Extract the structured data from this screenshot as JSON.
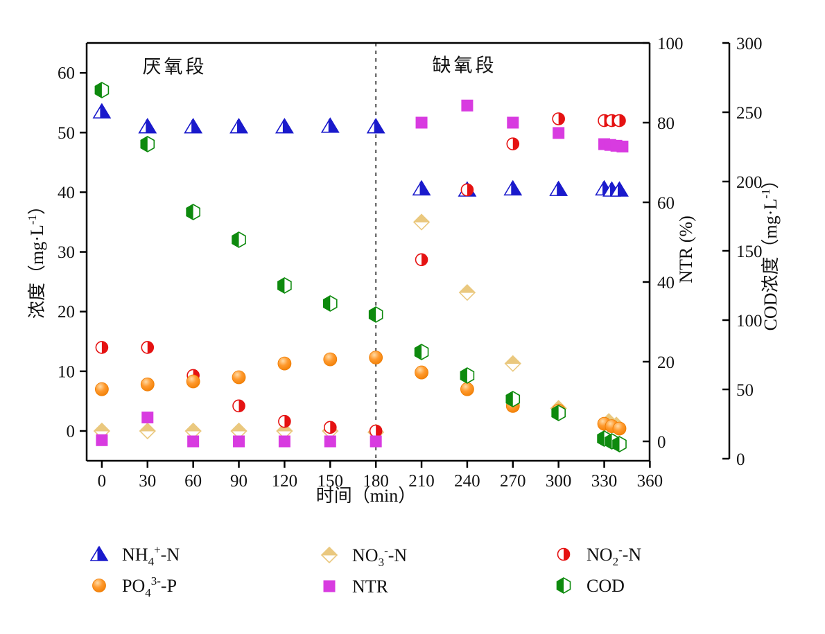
{
  "chart_data": {
    "type": "scatter",
    "title": "",
    "x_axis": {
      "label": "时间（min）",
      "ticks": [
        0,
        30,
        60,
        90,
        120,
        150,
        180,
        210,
        240,
        270,
        300,
        330,
        360
      ],
      "lim": [
        -10,
        360
      ]
    },
    "y_left_axis": {
      "label": "浓度（mg·L⁻¹）",
      "label_base": "浓度（mg·L",
      "label_sup": "-1",
      "label_end": "）",
      "ticks": [
        0,
        10,
        20,
        30,
        40,
        50,
        60
      ],
      "lim": [
        -5,
        65
      ]
    },
    "y_ntr_axis": {
      "label": "NTR (%)",
      "ticks": [
        0,
        20,
        40,
        60,
        80,
        100
      ],
      "lim": [
        0,
        100
      ]
    },
    "y_cod_axis": {
      "label": "COD浓度（mg·L⁻¹）",
      "label_base": "COD浓度（mg·L",
      "label_sup": "-1",
      "label_end": "）",
      "ticks": [
        0,
        50,
        100,
        150,
        200,
        250,
        300
      ],
      "lim": [
        0,
        300
      ]
    },
    "phases": {
      "anaerobic": "厌氧段",
      "anoxic": "缺氧段",
      "divider_time": 180
    },
    "series": [
      {
        "id": "nh4",
        "name": "NH4+-N",
        "legend": {
          "base": "NH",
          "sub": "4",
          "sup": "+",
          "suffix": "-N"
        },
        "marker": "half-triangle",
        "color": "#1a1acc",
        "axis": "left",
        "points": [
          [
            0,
            53.5
          ],
          [
            30,
            51
          ],
          [
            60,
            51
          ],
          [
            90,
            51
          ],
          [
            120,
            51
          ],
          [
            150,
            51.1
          ],
          [
            180,
            51
          ],
          [
            210,
            40.6
          ],
          [
            240,
            40.4
          ],
          [
            270,
            40.6
          ],
          [
            300,
            40.5
          ],
          [
            330,
            40.6
          ],
          [
            335,
            40.4
          ],
          [
            340,
            40.4
          ]
        ]
      },
      {
        "id": "no3",
        "name": "NO3--N",
        "legend": {
          "base": "NO",
          "sub": "3",
          "sup": "-",
          "suffix": "-N"
        },
        "marker": "half-diamond",
        "color": "#eac87e",
        "axis": "left",
        "points": [
          [
            0,
            0
          ],
          [
            30,
            0
          ],
          [
            60,
            0
          ],
          [
            90,
            0
          ],
          [
            120,
            0
          ],
          [
            150,
            0
          ],
          [
            180,
            -0.2
          ],
          [
            210,
            35
          ],
          [
            240,
            23.2
          ],
          [
            270,
            11.3
          ],
          [
            300,
            3.8
          ],
          [
            333,
            1.6
          ],
          [
            338,
            1.0
          ]
        ]
      },
      {
        "id": "no2",
        "name": "NO2--N",
        "legend": {
          "base": "NO",
          "sub": "2",
          "sup": "-",
          "suffix": "-N"
        },
        "marker": "half-circle",
        "color": "#e51212",
        "axis": "left",
        "points": [
          [
            0,
            14
          ],
          [
            30,
            14
          ],
          [
            60,
            9.3
          ],
          [
            90,
            4.2
          ],
          [
            120,
            1.6
          ],
          [
            150,
            0.6
          ],
          [
            180,
            0
          ],
          [
            210,
            28.7
          ],
          [
            240,
            40.4
          ],
          [
            270,
            48.1
          ],
          [
            300,
            52.3
          ],
          [
            330,
            52
          ],
          [
            335,
            52
          ],
          [
            340,
            52
          ]
        ]
      },
      {
        "id": "po4",
        "name": "PO43--P",
        "legend": {
          "base": "PO",
          "sub": "4",
          "sup": "3-",
          "suffix": "-P"
        },
        "marker": "sphere",
        "color": "#ff8c1e",
        "axis": "left",
        "points": [
          [
            0,
            7
          ],
          [
            30,
            7.8
          ],
          [
            60,
            8.3
          ],
          [
            90,
            9
          ],
          [
            120,
            11.3
          ],
          [
            150,
            12
          ],
          [
            180,
            12.3
          ],
          [
            210,
            9.8
          ],
          [
            240,
            7
          ],
          [
            270,
            4.2
          ],
          [
            300,
            3.4
          ],
          [
            330,
            1.2
          ],
          [
            335,
            0.8
          ],
          [
            340,
            0.4
          ]
        ]
      },
      {
        "id": "ntr",
        "name": "NTR",
        "legend": {
          "base": "NTR"
        },
        "marker": "square",
        "color": "#d83be0",
        "axis": "ntr",
        "points": [
          [
            0,
            0.3
          ],
          [
            30,
            6
          ],
          [
            60,
            0
          ],
          [
            90,
            0
          ],
          [
            120,
            0
          ],
          [
            150,
            0
          ],
          [
            180,
            0
          ],
          [
            210,
            80
          ],
          [
            240,
            84.3
          ],
          [
            270,
            80
          ],
          [
            300,
            77.4
          ],
          [
            330,
            74.6
          ],
          [
            334,
            74.4
          ],
          [
            338,
            74.2
          ],
          [
            342,
            74
          ]
        ]
      },
      {
        "id": "cod",
        "name": "COD",
        "legend": {
          "base": "COD"
        },
        "marker": "half-hexagon",
        "color": "#0e8a0e",
        "axis": "cod",
        "points": [
          [
            0,
            266
          ],
          [
            30,
            227
          ],
          [
            60,
            178
          ],
          [
            90,
            158
          ],
          [
            120,
            125
          ],
          [
            150,
            112
          ],
          [
            180,
            104
          ],
          [
            210,
            77
          ],
          [
            240,
            60
          ],
          [
            270,
            43
          ],
          [
            300,
            33
          ],
          [
            330,
            14.5
          ],
          [
            335,
            12.5
          ],
          [
            340,
            10.5
          ]
        ]
      }
    ]
  }
}
